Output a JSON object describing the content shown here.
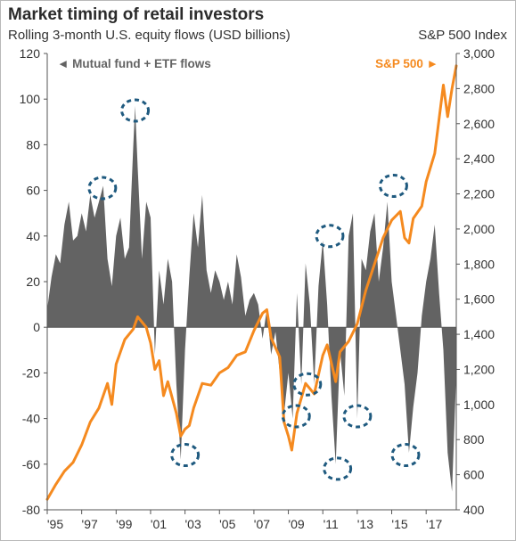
{
  "chart_data": {
    "type": "area",
    "title": "Market timing of retail investors",
    "subtitle": "Rolling 3-month U.S. equity flows (USD billions)",
    "ylabel_right": "S&P 500 Index",
    "x_ticks": [
      "'95",
      "'97",
      "'99",
      "'01",
      "'03",
      "'05",
      "'07",
      "'09",
      "'11",
      "'13",
      "'15",
      "'17"
    ],
    "x_range": [
      1995.0,
      2018.75
    ],
    "y_left": {
      "min": -80,
      "max": 120,
      "ticks": [
        -80,
        -60,
        -40,
        -20,
        0,
        20,
        40,
        60,
        80,
        100,
        120
      ]
    },
    "y_right": {
      "min": 400,
      "max": 3000,
      "ticks": [
        "400",
        "600",
        "800",
        "1,000",
        "1,200",
        "1,400",
        "1,600",
        "1,800",
        "2,000",
        "2,200",
        "2,400",
        "2,600",
        "2,800",
        "3,000"
      ],
      "tick_values": [
        400,
        600,
        800,
        1000,
        1200,
        1400,
        1600,
        1800,
        2000,
        2200,
        2400,
        2600,
        2800,
        3000
      ]
    },
    "grid": false,
    "colors": {
      "flows": "#636363",
      "sp500": "#f58a1f",
      "circles": "#1f5a7f"
    },
    "series": [
      {
        "name": "Mutual fund + ETF flows",
        "axis": "left",
        "legend_marker": "◄",
        "values": [
          [
            1995.0,
            8
          ],
          [
            1995.25,
            22
          ],
          [
            1995.5,
            32
          ],
          [
            1995.75,
            28
          ],
          [
            1996.0,
            45
          ],
          [
            1996.25,
            55
          ],
          [
            1996.5,
            38
          ],
          [
            1996.75,
            40
          ],
          [
            1997.0,
            50
          ],
          [
            1997.25,
            42
          ],
          [
            1997.5,
            58
          ],
          [
            1997.75,
            48
          ],
          [
            1998.0,
            55
          ],
          [
            1998.25,
            62
          ],
          [
            1998.5,
            30
          ],
          [
            1998.75,
            18
          ],
          [
            1999.0,
            40
          ],
          [
            1999.25,
            48
          ],
          [
            1999.5,
            30
          ],
          [
            1999.75,
            35
          ],
          [
            2000.0,
            80
          ],
          [
            2000.1,
            97
          ],
          [
            2000.25,
            70
          ],
          [
            2000.5,
            30
          ],
          [
            2000.75,
            55
          ],
          [
            2001.0,
            48
          ],
          [
            2001.25,
            -12
          ],
          [
            2001.5,
            25
          ],
          [
            2001.75,
            10
          ],
          [
            2002.0,
            30
          ],
          [
            2002.25,
            20
          ],
          [
            2002.5,
            -25
          ],
          [
            2002.75,
            -58
          ],
          [
            2003.0,
            -10
          ],
          [
            2003.25,
            22
          ],
          [
            2003.5,
            50
          ],
          [
            2003.75,
            35
          ],
          [
            2004.0,
            58
          ],
          [
            2004.25,
            25
          ],
          [
            2004.5,
            15
          ],
          [
            2004.75,
            25
          ],
          [
            2005.0,
            20
          ],
          [
            2005.25,
            12
          ],
          [
            2005.5,
            20
          ],
          [
            2005.75,
            10
          ],
          [
            2006.0,
            32
          ],
          [
            2006.25,
            22
          ],
          [
            2006.5,
            5
          ],
          [
            2006.75,
            12
          ],
          [
            2007.0,
            15
          ],
          [
            2007.25,
            10
          ],
          [
            2007.5,
            -5
          ],
          [
            2007.75,
            8
          ],
          [
            2008.0,
            -12
          ],
          [
            2008.25,
            -2
          ],
          [
            2008.5,
            -20
          ],
          [
            2008.75,
            -38
          ],
          [
            2009.0,
            -20
          ],
          [
            2009.25,
            -40
          ],
          [
            2009.5,
            15
          ],
          [
            2009.75,
            -25
          ],
          [
            2010.0,
            28
          ],
          [
            2010.25,
            10
          ],
          [
            2010.5,
            -25
          ],
          [
            2010.75,
            18
          ],
          [
            2011.0,
            38
          ],
          [
            2011.25,
            10
          ],
          [
            2011.5,
            -30
          ],
          [
            2011.75,
            -60
          ],
          [
            2012.0,
            -10
          ],
          [
            2012.25,
            -30
          ],
          [
            2012.5,
            40
          ],
          [
            2012.75,
            50
          ],
          [
            2013.0,
            -40
          ],
          [
            2013.25,
            30
          ],
          [
            2013.5,
            25
          ],
          [
            2013.75,
            42
          ],
          [
            2014.0,
            50
          ],
          [
            2014.25,
            20
          ],
          [
            2014.5,
            35
          ],
          [
            2014.75,
            55
          ],
          [
            2015.0,
            20
          ],
          [
            2015.25,
            5
          ],
          [
            2015.5,
            -10
          ],
          [
            2015.75,
            -25
          ],
          [
            2016.0,
            -55
          ],
          [
            2016.25,
            -35
          ],
          [
            2016.5,
            -20
          ],
          [
            2016.75,
            5
          ],
          [
            2017.0,
            20
          ],
          [
            2017.25,
            30
          ],
          [
            2017.5,
            45
          ],
          [
            2017.75,
            15
          ],
          [
            2018.0,
            -10
          ],
          [
            2018.25,
            -55
          ],
          [
            2018.5,
            -72
          ],
          [
            2018.75,
            -20
          ]
        ]
      },
      {
        "name": "S&P 500",
        "axis": "right",
        "legend_marker": "►",
        "values": [
          [
            1995.0,
            460
          ],
          [
            1995.5,
            545
          ],
          [
            1996.0,
            620
          ],
          [
            1996.5,
            670
          ],
          [
            1997.0,
            770
          ],
          [
            1997.5,
            900
          ],
          [
            1998.0,
            980
          ],
          [
            1998.5,
            1120
          ],
          [
            1998.75,
            1000
          ],
          [
            1999.0,
            1230
          ],
          [
            1999.5,
            1370
          ],
          [
            2000.0,
            1430
          ],
          [
            2000.25,
            1500
          ],
          [
            2000.75,
            1440
          ],
          [
            2001.0,
            1350
          ],
          [
            2001.25,
            1200
          ],
          [
            2001.5,
            1250
          ],
          [
            2001.75,
            1050
          ],
          [
            2002.0,
            1130
          ],
          [
            2002.5,
            950
          ],
          [
            2002.75,
            820
          ],
          [
            2003.0,
            860
          ],
          [
            2003.25,
            880
          ],
          [
            2003.5,
            980
          ],
          [
            2004.0,
            1120
          ],
          [
            2004.5,
            1110
          ],
          [
            2005.0,
            1180
          ],
          [
            2005.5,
            1210
          ],
          [
            2006.0,
            1280
          ],
          [
            2006.5,
            1300
          ],
          [
            2007.0,
            1420
          ],
          [
            2007.5,
            1520
          ],
          [
            2007.75,
            1540
          ],
          [
            2008.0,
            1380
          ],
          [
            2008.5,
            1270
          ],
          [
            2008.75,
            900
          ],
          [
            2009.0,
            820
          ],
          [
            2009.2,
            740
          ],
          [
            2009.5,
            950
          ],
          [
            2010.0,
            1120
          ],
          [
            2010.5,
            1060
          ],
          [
            2011.0,
            1280
          ],
          [
            2011.25,
            1340
          ],
          [
            2011.75,
            1130
          ],
          [
            2012.0,
            1300
          ],
          [
            2012.5,
            1360
          ],
          [
            2013.0,
            1460
          ],
          [
            2013.5,
            1650
          ],
          [
            2014.0,
            1800
          ],
          [
            2014.5,
            1950
          ],
          [
            2015.0,
            2050
          ],
          [
            2015.5,
            2100
          ],
          [
            2015.75,
            1950
          ],
          [
            2016.0,
            1920
          ],
          [
            2016.25,
            2060
          ],
          [
            2016.75,
            2130
          ],
          [
            2017.0,
            2270
          ],
          [
            2017.5,
            2430
          ],
          [
            2018.0,
            2820
          ],
          [
            2018.25,
            2640
          ],
          [
            2018.5,
            2800
          ],
          [
            2018.75,
            2930
          ]
        ]
      }
    ],
    "annotations": [
      {
        "label": "circle",
        "x": 1998.2,
        "y_left": 61
      },
      {
        "label": "circle",
        "x": 2000.1,
        "y_left": 95
      },
      {
        "label": "circle",
        "x": 2003.0,
        "y_left": -56
      },
      {
        "label": "circle",
        "x": 2009.45,
        "y_left": -39
      },
      {
        "label": "circle",
        "x": 2010.1,
        "y_left": -25
      },
      {
        "label": "circle",
        "x": 2011.4,
        "y_left": 40
      },
      {
        "label": "circle",
        "x": 2011.85,
        "y_left": -62
      },
      {
        "label": "circle",
        "x": 2013.0,
        "y_left": -39
      },
      {
        "label": "circle",
        "x": 2015.1,
        "y_left": 62
      },
      {
        "label": "circle",
        "x": 2015.8,
        "y_left": -56
      }
    ]
  }
}
